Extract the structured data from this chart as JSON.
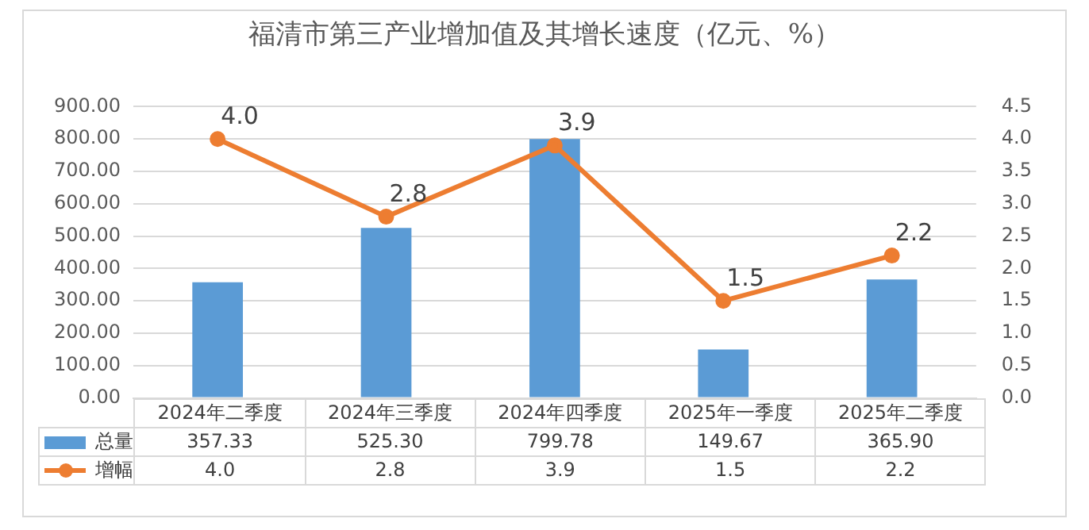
{
  "chart_data": {
    "type": "bar",
    "title": "福清市第三产业增加值及其增长速度（亿元、%）",
    "categories": [
      "2024年二季度",
      "2024年三季度",
      "2024年四季度",
      "2025年一季度",
      "2025年二季度"
    ],
    "series": [
      {
        "name": "总量",
        "color": "#5b9bd5",
        "values": [
          357.33,
          525.3,
          799.78,
          149.67,
          365.9
        ],
        "value_labels": [
          "357.33",
          "525.30",
          "799.78",
          "149.67",
          "365.90"
        ]
      },
      {
        "name": "增幅",
        "type": "line",
        "axis": "y2",
        "color": "#ed7d31",
        "values": [
          4.0,
          2.8,
          3.9,
          1.5,
          2.2
        ],
        "value_labels": [
          "4.0",
          "2.8",
          "3.9",
          "1.5",
          "2.2"
        ]
      }
    ],
    "ylim": [
      0,
      900
    ],
    "yticks": [
      {
        "value": 0,
        "label": "0.00"
      },
      {
        "value": 100,
        "label": "100.00"
      },
      {
        "value": 200,
        "label": "200.00"
      },
      {
        "value": 300,
        "label": "300.00"
      },
      {
        "value": 400,
        "label": "400.00"
      },
      {
        "value": 500,
        "label": "500.00"
      },
      {
        "value": 600,
        "label": "600.00"
      },
      {
        "value": 700,
        "label": "700.00"
      },
      {
        "value": 800,
        "label": "800.00"
      },
      {
        "value": 900,
        "label": "900.00"
      }
    ],
    "y2lim": [
      0,
      4.5
    ],
    "y2ticks": [
      {
        "value": 0,
        "label": "0.0"
      },
      {
        "value": 0.5,
        "label": "0.5"
      },
      {
        "value": 1,
        "label": "1.0"
      },
      {
        "value": 1.5,
        "label": "1.5"
      },
      {
        "value": 2,
        "label": "2.0"
      },
      {
        "value": 2.5,
        "label": "2.5"
      },
      {
        "value": 3,
        "label": "3.0"
      },
      {
        "value": 3.5,
        "label": "3.5"
      },
      {
        "value": 4,
        "label": "4.0"
      },
      {
        "value": 4.5,
        "label": "4.5"
      }
    ],
    "grid": "y",
    "legend": "bottom",
    "marker": "circle",
    "line_style": "solid"
  }
}
